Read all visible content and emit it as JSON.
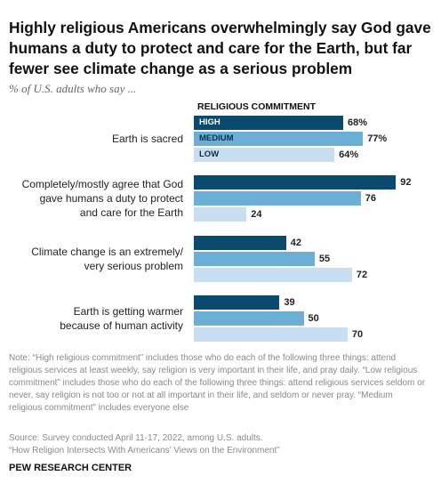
{
  "chart_data": {
    "type": "bar",
    "orientation": "horizontal",
    "title": "Highly religious Americans overwhelmingly say God gave humans a duty to protect and care for the Earth, but far fewer see climate change as a serious problem",
    "subtitle": "% of U.S. adults who say ...",
    "legend_title": "RELIGIOUS COMMITMENT",
    "categories": [
      "Earth is sacred",
      "Completely/mostly agree that God\ngave humans a duty to protect\nand care for the Earth",
      "Climate change is an extremely/\nvery serious problem",
      "Earth is getting warmer\nbecause of human activity"
    ],
    "series": [
      {
        "name": "HIGH",
        "color": "#0b4a6f",
        "values": [
          68,
          92,
          42,
          39
        ],
        "value_labels": [
          "68%",
          "92",
          "42",
          "39"
        ]
      },
      {
        "name": "MEDIUM",
        "color": "#6bafd6",
        "values": [
          77,
          76,
          55,
          50
        ],
        "value_labels": [
          "77%",
          "76",
          "55",
          "50"
        ]
      },
      {
        "name": "LOW",
        "color": "#c7dff0",
        "values": [
          64,
          24,
          72,
          70
        ],
        "value_labels": [
          "64%",
          "24",
          "72",
          "70"
        ]
      }
    ],
    "note": "Note: “High religious commitment” includes those who do each of the following three things: attend religious services at least weekly, say religion is very important in their life, and pray daily. “Low religious commitment” includes those who do each of the following three things: attend religious services seldom or never, say religion is not too or not at all important in their life, and seldom or never pray. “Medium religious commitment” includes everyone else",
    "source": "Source: Survey conducted April 11-17, 2022, among U.S. adults.",
    "report": "“How Religion Intersects With Americans’ Views on the Environment”",
    "credit": "PEW RESEARCH CENTER"
  }
}
